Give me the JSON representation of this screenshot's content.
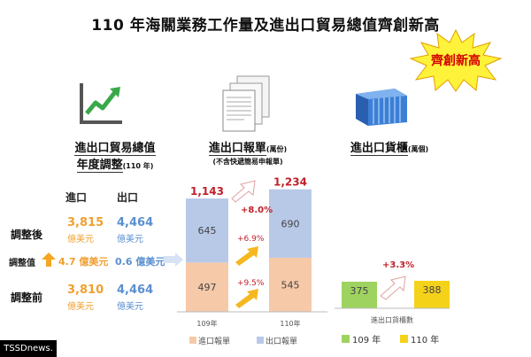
{
  "title": "110 年海關業務工作量及進出口貿易總值齊創新高",
  "badge": "齊創新高",
  "trade": {
    "header_line1": "進出口貿易總值",
    "header_line2": "年度調整",
    "header_note": "(110 年)",
    "col_import": "進口",
    "col_export": "出口",
    "row_after": "調整後",
    "row_adjust": "調整值",
    "row_before": "調整前",
    "after_import": "3,815",
    "after_export": "4,464",
    "adjust_import": "4.7 億美元",
    "adjust_export": "0.6 億美元",
    "before_import": "3,810",
    "before_export": "4,464",
    "unit": "億美元"
  },
  "declarations": {
    "header": "進出口報單",
    "header_unit": "(萬份)",
    "header_note": "(不含快遞簡易申報單)"
  },
  "containers": {
    "header": "進出口貨櫃",
    "header_unit": "(萬個)"
  },
  "colors": {
    "import": "#f6c9a8",
    "export": "#b8c9e8",
    "y109": "#9ed35f",
    "y110": "#f5d21a",
    "total_red": "#c0202a",
    "pct_red": "#c0202a"
  },
  "chart_data": [
    {
      "type": "bar",
      "categories": [
        "109年",
        "110年"
      ],
      "series": [
        {
          "name": "進口報單",
          "values": [
            497,
            545
          ]
        },
        {
          "name": "出口報單",
          "values": [
            645,
            690
          ]
        }
      ],
      "totals": [
        "1,143",
        "1,234"
      ],
      "annotations": {
        "total_growth": "+8.0%",
        "export_growth": "+6.9%",
        "import_growth": "+9.5%"
      },
      "legend": [
        "進口報單",
        "出口報單"
      ],
      "legend_placement": "bottom"
    },
    {
      "type": "bar",
      "categories": [
        "109 年",
        "110 年"
      ],
      "values": [
        375,
        388
      ],
      "value_labels": [
        "375",
        "388"
      ],
      "xlabel": "進出口貨櫃數",
      "annotations": {
        "growth": "+3.3%"
      },
      "legend": [
        "109 年",
        "110 年"
      ],
      "legend_placement": "bottom"
    }
  ],
  "footer": "TSSDnews."
}
